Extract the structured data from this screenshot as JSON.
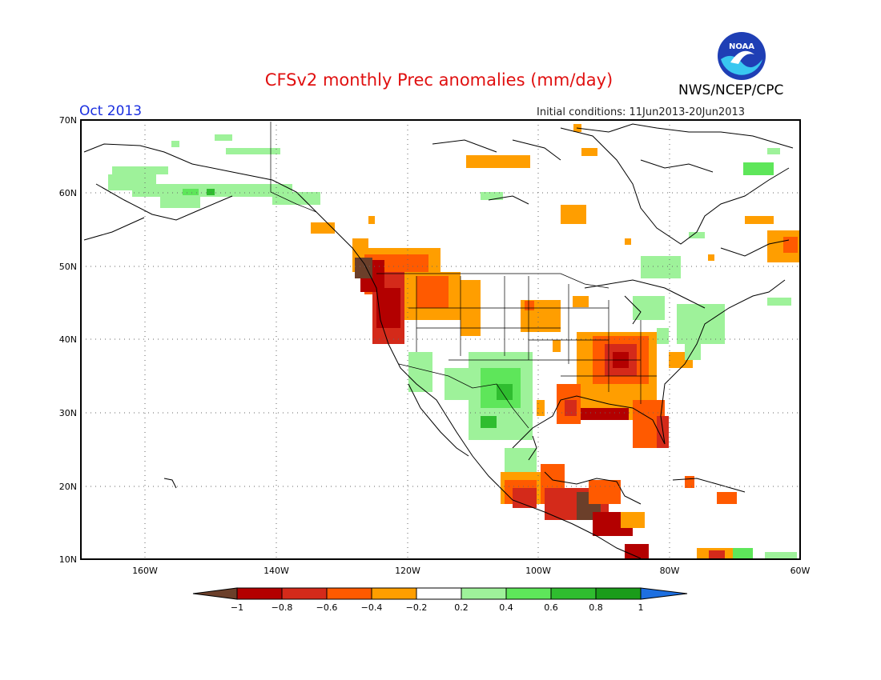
{
  "header": {
    "title": "CFSv2 monthly Prec anomalies (mm/day)",
    "organization": "NWS/NCEP/CPC",
    "logo_text": "NOAA",
    "month": "Oct 2013",
    "initial_conditions": "Initial conditions: 11Jun2013-20Jun2013"
  },
  "map": {
    "lat_labels": [
      "70N",
      "60N",
      "50N",
      "40N",
      "30N",
      "20N",
      "10N"
    ],
    "lon_labels": [
      "160W",
      "140W",
      "120W",
      "100W",
      "80W",
      "60W"
    ],
    "lat_range": [
      10,
      70
    ],
    "lon_range": [
      -172,
      -60
    ],
    "grid": true
  },
  "colorbar": {
    "labels": [
      "−1",
      "−0.8",
      "−0.6",
      "−0.4",
      "−0.2",
      "0.2",
      "0.4",
      "0.6",
      "0.8",
      "1"
    ],
    "colors": [
      "#6b3f2a",
      "#b30000",
      "#d42a1a",
      "#ff5a00",
      "#ff9e00",
      "#ffffff",
      "#9ef29a",
      "#5ee65a",
      "#2fbd2f",
      "#1a9c1a",
      "#1d6fe0"
    ]
  }
}
